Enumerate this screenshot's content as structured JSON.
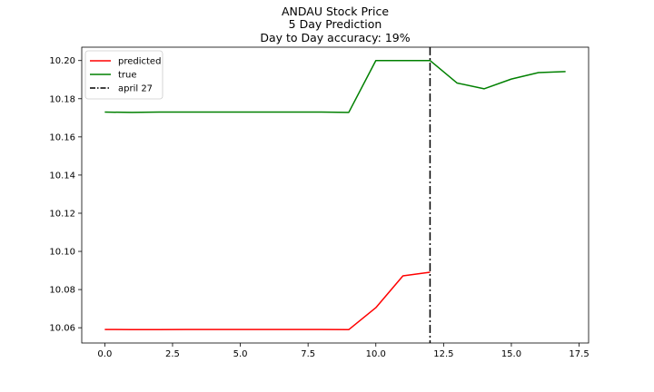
{
  "chart_data": {
    "type": "line",
    "title_lines": [
      "ANDAU Stock Price",
      "5 Day Prediction",
      "Day to Day accuracy: 19%"
    ],
    "xlabel": "",
    "ylabel": "",
    "xlim": [
      -0.85,
      17.85
    ],
    "ylim": [
      10.052,
      10.207
    ],
    "xticks": [
      0.0,
      2.5,
      5.0,
      7.5,
      10.0,
      12.5,
      15.0,
      17.5
    ],
    "xtick_labels": [
      "0.0",
      "2.5",
      "5.0",
      "7.5",
      "10.0",
      "12.5",
      "15.0",
      "17.5"
    ],
    "yticks": [
      10.06,
      10.08,
      10.1,
      10.12,
      10.14,
      10.16,
      10.18,
      10.2
    ],
    "ytick_labels": [
      "10.06",
      "10.08",
      "10.10",
      "10.12",
      "10.14",
      "10.16",
      "10.18",
      "10.20"
    ],
    "grid": false,
    "legend_position": "top-left",
    "series": [
      {
        "name": "predicted",
        "color": "#ff0000",
        "style": "solid",
        "x": [
          0,
          1,
          2,
          3,
          4,
          5,
          6,
          7,
          8,
          9,
          10,
          11,
          12
        ],
        "y": [
          10.0591,
          10.059,
          10.059,
          10.0591,
          10.0591,
          10.0591,
          10.0591,
          10.0591,
          10.0591,
          10.059,
          10.0705,
          10.0872,
          10.0891
        ]
      },
      {
        "name": "true",
        "color": "#008000",
        "style": "solid",
        "x": [
          0,
          1,
          2,
          3,
          4,
          5,
          6,
          7,
          8,
          9,
          10,
          11,
          12,
          13,
          14,
          15,
          16,
          17
        ],
        "y": [
          10.173,
          10.1728,
          10.173,
          10.173,
          10.173,
          10.173,
          10.173,
          10.173,
          10.173,
          10.1728,
          10.2,
          10.2,
          10.2,
          10.1882,
          10.1852,
          10.1903,
          10.1937,
          10.1942
        ]
      }
    ],
    "vlines": [
      {
        "name": "april 27",
        "x": 12,
        "color": "#000000",
        "style": "dashdot"
      }
    ]
  }
}
